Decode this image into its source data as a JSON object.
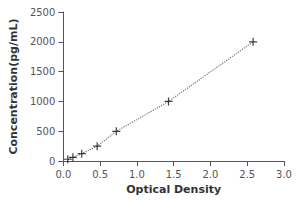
{
  "chart_data": {
    "type": "line",
    "xlabel": "Optical Density",
    "ylabel": "Concentration(pg/mL)",
    "x": [
      0.06,
      0.13,
      0.25,
      0.46,
      0.72,
      1.43,
      2.58
    ],
    "series": [
      {
        "type": "line",
        "color": "#777777",
        "line_style": "dotted",
        "values": [
          31,
          63,
          125,
          250,
          500,
          1000,
          2000
        ]
      },
      {
        "type": "scatter",
        "color": "#111111",
        "marker": "plus",
        "values": [
          31,
          63,
          125,
          250,
          500,
          1000,
          2000
        ]
      }
    ],
    "xlim": [
      0,
      3
    ],
    "ylim": [
      0,
      2500
    ],
    "xticks": [
      {
        "value": 0,
        "label": "0.0"
      },
      {
        "value": 0.5,
        "label": "0.5"
      },
      {
        "value": 1,
        "label": "1.0"
      },
      {
        "value": 1.5,
        "label": "1.5"
      },
      {
        "value": 2,
        "label": "2.0"
      },
      {
        "value": 2.5,
        "label": "2.5"
      },
      {
        "value": 3,
        "label": "3.0"
      }
    ],
    "yticks": [
      0,
      500,
      1000,
      1500,
      2000,
      2500
    ],
    "grid": false
  }
}
